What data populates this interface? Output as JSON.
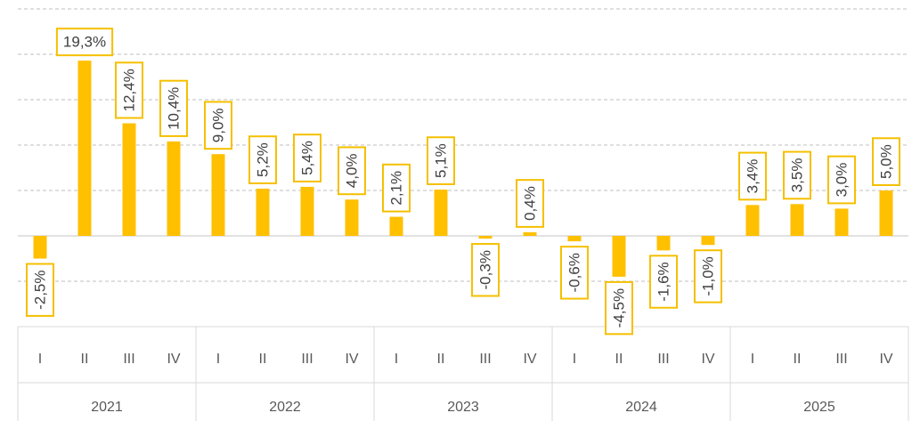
{
  "chart_data": {
    "type": "bar",
    "categories": [
      "I",
      "II",
      "III",
      "IV",
      "I",
      "II",
      "III",
      "IV",
      "I",
      "II",
      "III",
      "IV",
      "I",
      "II",
      "III",
      "IV",
      "I",
      "II",
      "III",
      "IV"
    ],
    "groups": [
      "2021",
      "2022",
      "2023",
      "2024",
      "2025"
    ],
    "values": [
      -2.5,
      19.3,
      12.4,
      10.4,
      9.0,
      5.2,
      5.4,
      4.0,
      2.1,
      5.1,
      -0.3,
      0.4,
      -0.6,
      -4.5,
      -1.6,
      -1.0,
      3.4,
      3.5,
      3.0,
      5.0
    ],
    "value_labels": [
      "-2,5%",
      "19,3%",
      "12,4%",
      "10,4%",
      "9,0%",
      "5,2%",
      "5,4%",
      "4,0%",
      "2,1%",
      "5,1%",
      "-0,3%",
      "0,4%",
      "-0,6%",
      "-4,5%",
      "-1,6%",
      "-1,0%",
      "3,4%",
      "3,5%",
      "3,0%",
      "5,0%"
    ],
    "color": "#ffc000",
    "ylim": [
      -10,
      25
    ],
    "yticks": [
      -10,
      -5,
      0,
      5,
      10,
      15,
      20,
      25
    ],
    "grid": true
  }
}
